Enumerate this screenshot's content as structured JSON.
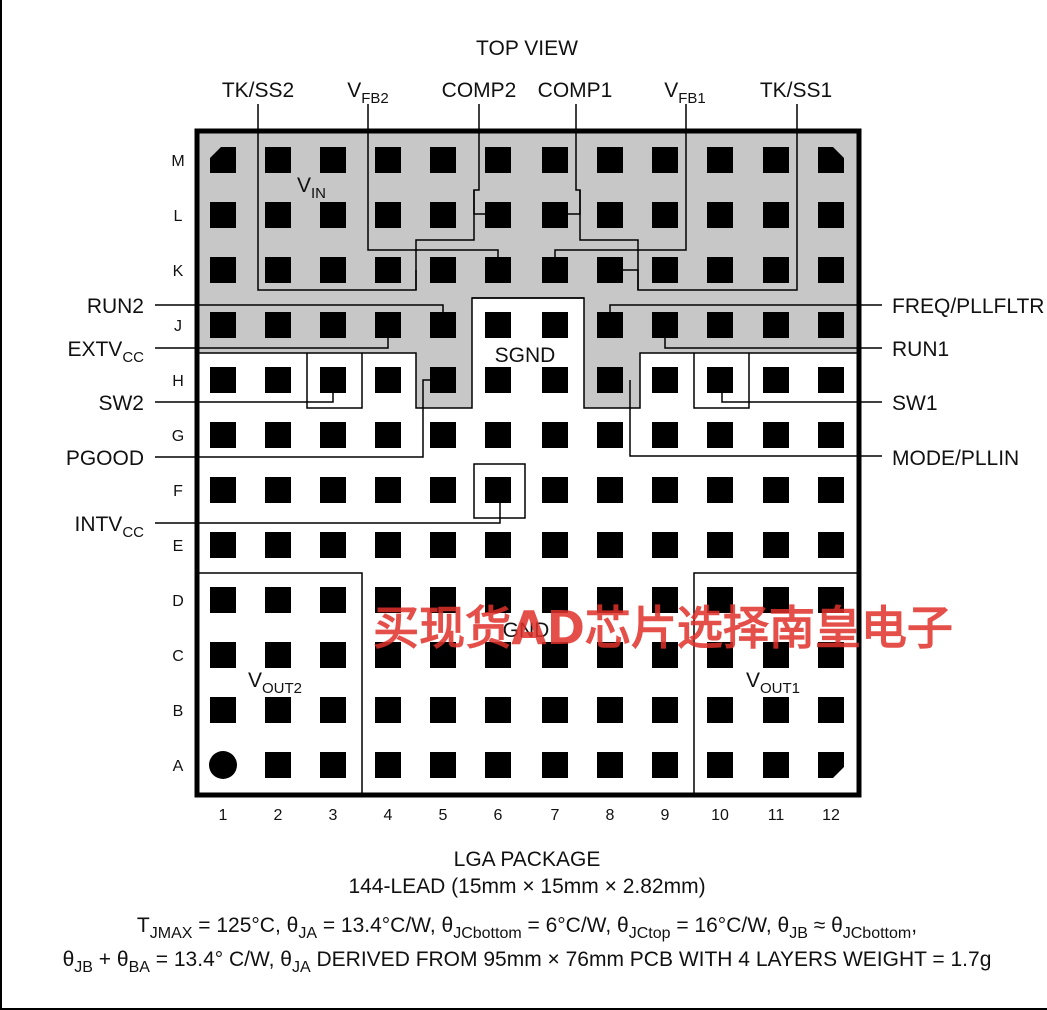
{
  "title": "TOP VIEW",
  "top_pins": [
    {
      "main": "TK/SS2",
      "sub": ""
    },
    {
      "main": "V",
      "sub": "FB2"
    },
    {
      "main": "COMP2",
      "sub": ""
    },
    {
      "main": "COMP1",
      "sub": ""
    },
    {
      "main": "V",
      "sub": "FB1"
    },
    {
      "main": "TK/SS1",
      "sub": ""
    }
  ],
  "left_pins": [
    {
      "main": "RUN2",
      "sub": ""
    },
    {
      "main": "EXTV",
      "sub": "CC"
    },
    {
      "main": "SW2",
      "sub": ""
    },
    {
      "main": "PGOOD",
      "sub": ""
    },
    {
      "main": "INTV",
      "sub": "CC"
    }
  ],
  "right_pins": [
    {
      "main": "FREQ/PLLFLTR",
      "sub": ""
    },
    {
      "main": "RUN1",
      "sub": ""
    },
    {
      "main": "SW1",
      "sub": ""
    },
    {
      "main": "MODE/PLLIN",
      "sub": ""
    }
  ],
  "regions": {
    "vin": {
      "main": "V",
      "sub": "IN"
    },
    "sgnd": {
      "main": "SGND",
      "sub": ""
    },
    "gnd": {
      "main": "GND",
      "sub": ""
    },
    "vout2": {
      "main": "V",
      "sub": "OUT2"
    },
    "vout1": {
      "main": "V",
      "sub": "OUT1"
    }
  },
  "rows": [
    "M",
    "L",
    "K",
    "J",
    "H",
    "G",
    "F",
    "E",
    "D",
    "C",
    "B",
    "A"
  ],
  "cols": [
    "1",
    "2",
    "3",
    "4",
    "5",
    "6",
    "7",
    "8",
    "9",
    "10",
    "11",
    "12"
  ],
  "package": {
    "name": "LGA PACKAGE",
    "desc": "144-LEAD (15mm × 15mm × 2.82mm)"
  },
  "spec": {
    "line1": [
      {
        "t": "T"
      },
      {
        "t": "JMAX",
        "s": true
      },
      {
        "t": " = 125°C, θ"
      },
      {
        "t": "JA",
        "s": true
      },
      {
        "t": " = 13.4°C/W, θ"
      },
      {
        "t": "JCbottom",
        "s": true
      },
      {
        "t": " = 6°C/W, θ"
      },
      {
        "t": "JCtop",
        "s": true
      },
      {
        "t": " = 16°C/W, θ"
      },
      {
        "t": "JB",
        "s": true
      },
      {
        "t": " ≈ θ"
      },
      {
        "t": "JCbottom",
        "s": true
      },
      {
        "t": ","
      }
    ],
    "line2": [
      {
        "t": "θ"
      },
      {
        "t": "JB",
        "s": true
      },
      {
        "t": " + θ"
      },
      {
        "t": "BA",
        "s": true
      },
      {
        "t": " = 13.4° C/W, θ"
      },
      {
        "t": "JA",
        "s": true
      },
      {
        "t": " DERIVED FROM 95mm × 76mm PCB WITH 4 LAYERS WEIGHT = 1.7g"
      }
    ]
  },
  "watermark": "买现货AD芯片选择南皇电子",
  "colors": {
    "shade": "#c7c7c7",
    "pad": "#000000",
    "line": "#000000",
    "watermark": "#e0302a"
  }
}
